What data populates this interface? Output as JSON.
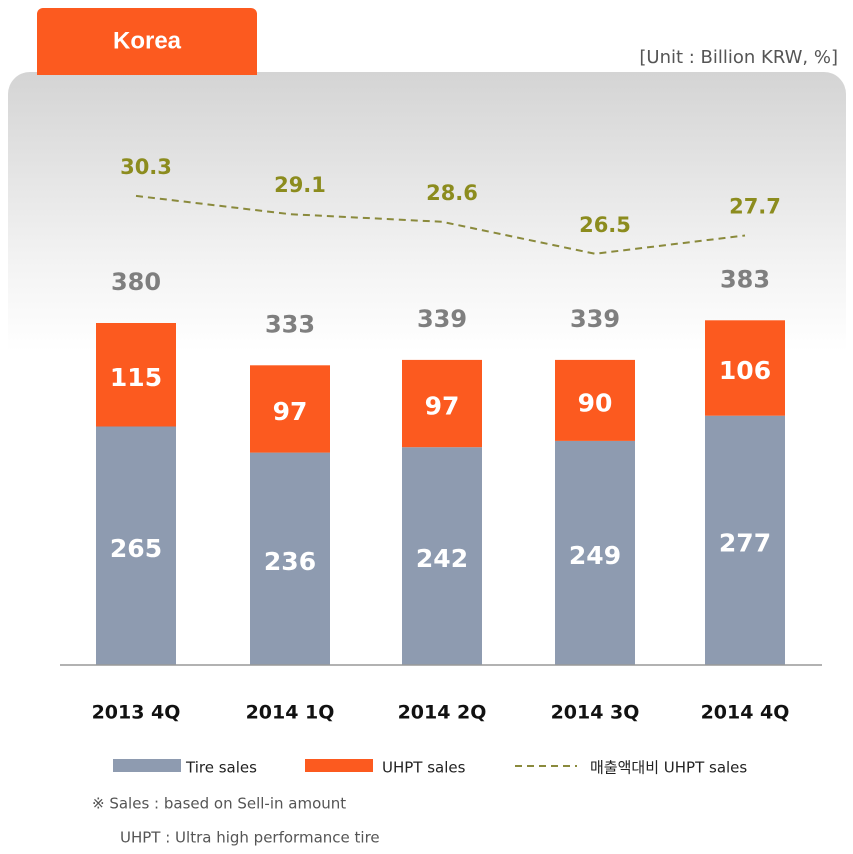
{
  "header": {
    "tab": "Korea",
    "unit": "[Unit : Billion KRW, %]"
  },
  "chart_data": {
    "type": "bar",
    "stacked": true,
    "categories": [
      "2013 4Q",
      "2014 1Q",
      "2014 2Q",
      "2014 3Q",
      "2014 4Q"
    ],
    "series": [
      {
        "name": "Tire sales",
        "color": "#8e9bb0",
        "values": [
          265,
          236,
          242,
          249,
          277
        ]
      },
      {
        "name": "UHPT sales",
        "color": "#fc5a1f",
        "values": [
          115,
          97,
          97,
          90,
          106
        ]
      },
      {
        "name": "매출액대비 UHPT sales",
        "type": "line",
        "line_style": "dashed",
        "axis": "y2",
        "color": "#8a8a3c",
        "values": [
          30.3,
          29.1,
          28.6,
          26.5,
          27.7
        ]
      }
    ],
    "totals": [
      380,
      333,
      339,
      339,
      383
    ],
    "ylim": [
      0,
      550
    ],
    "y2lim": [
      -0.5,
      32
    ]
  },
  "notes": [
    "※ Sales  : based on Sell-in amount",
    "UHPT : Ultra high performance tire"
  ]
}
